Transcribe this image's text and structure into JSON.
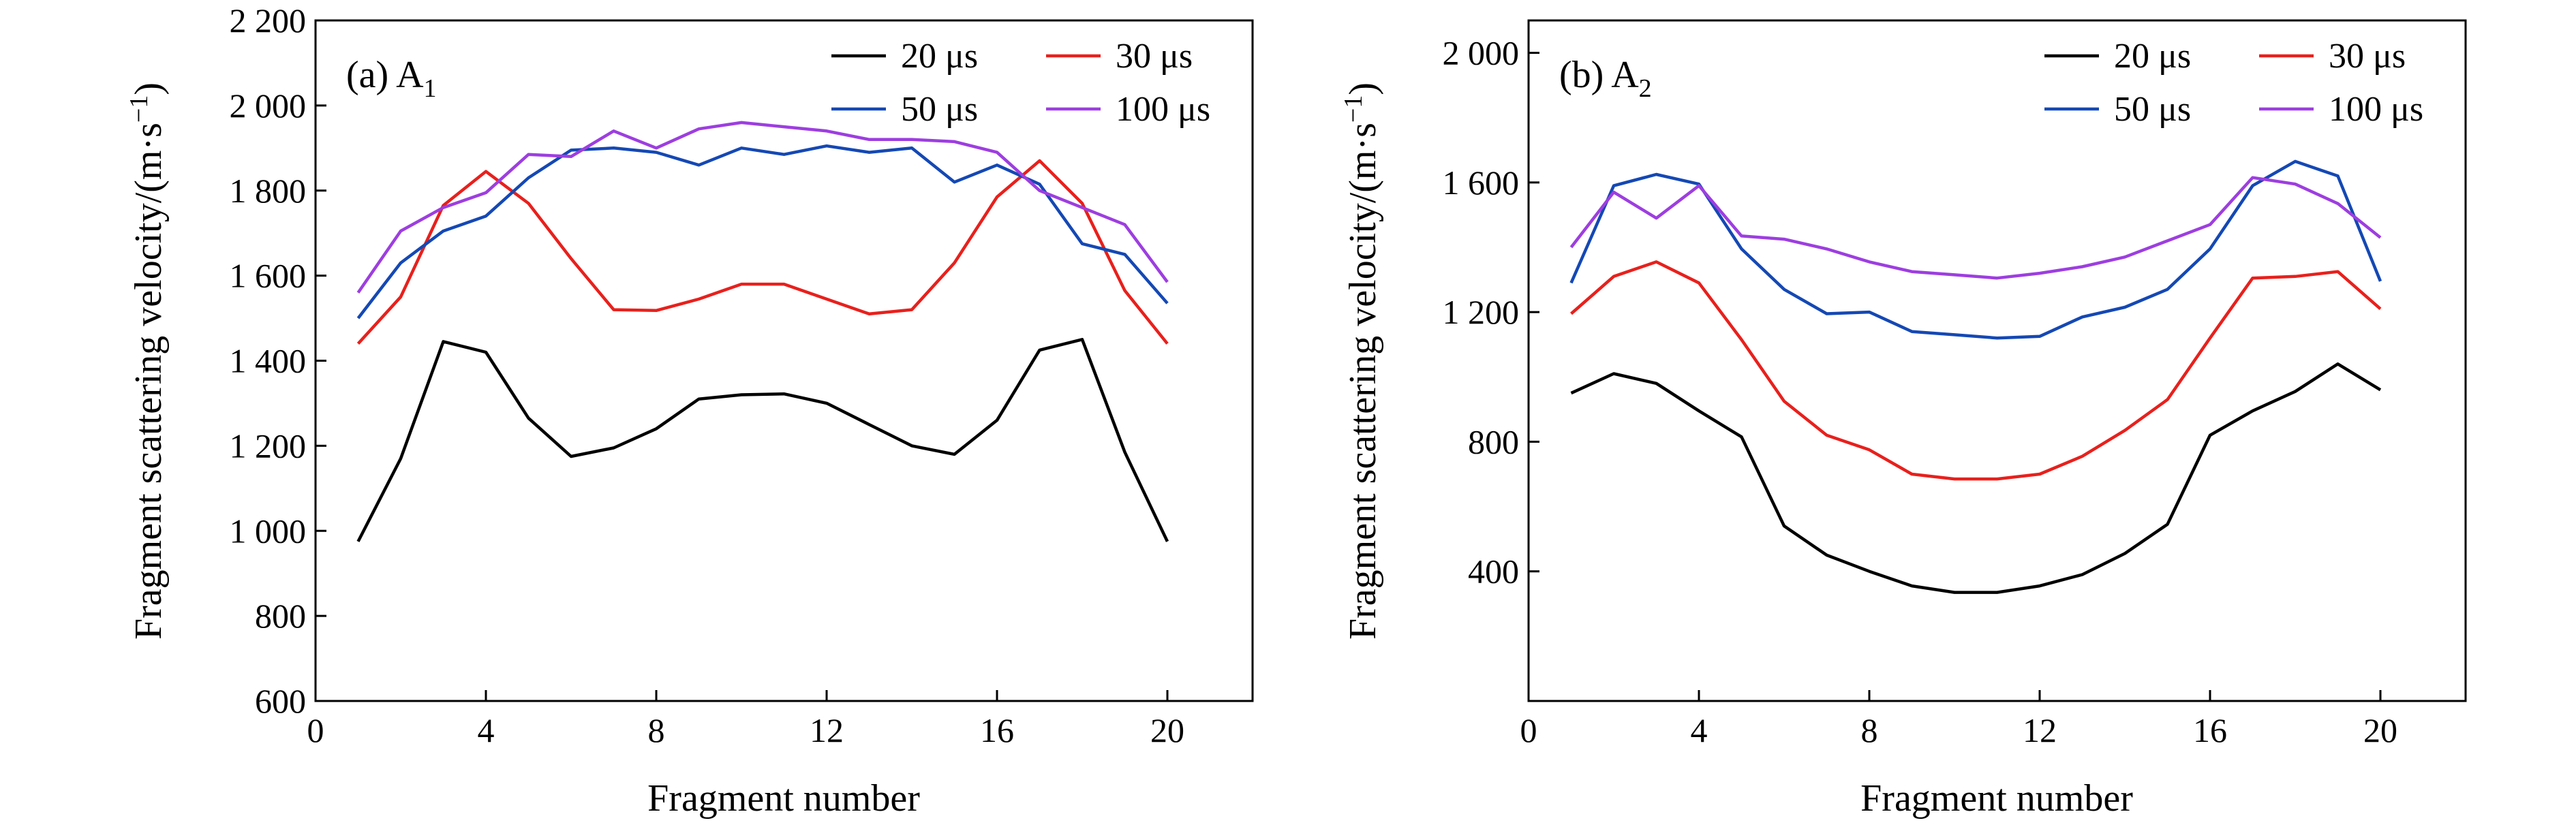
{
  "chart_data": [
    {
      "type": "line",
      "panel_label": "(a) A",
      "panel_subscript": "1",
      "xlabel": "Fragment number",
      "ylabel": "Fragment scattering velocity/(m·s",
      "ylabel_sup": "−1",
      "ylabel_end": ")",
      "xlim": [
        0,
        22
      ],
      "ylim": [
        600,
        2200
      ],
      "x_ticks": [
        0,
        4,
        8,
        12,
        16,
        20
      ],
      "x_tick_labels": [
        "0",
        "4",
        "8",
        "12",
        "16",
        "20"
      ],
      "y_ticks": [
        600,
        800,
        1000,
        1200,
        1400,
        1600,
        1800,
        2000,
        2200
      ],
      "y_tick_labels": [
        "600",
        "800",
        "1 000",
        "1 200",
        "1 400",
        "1 600",
        "1 800",
        "2 000",
        "2 200"
      ],
      "legend_position": "top-right",
      "x": [
        1,
        2,
        3,
        4,
        5,
        6,
        7,
        8,
        9,
        10,
        11,
        12,
        13,
        14,
        15,
        16,
        17,
        18,
        19,
        20
      ],
      "series": [
        {
          "name": "20 μs",
          "color": "#000000",
          "values": [
            975,
            1170,
            1445,
            1420,
            1265,
            1175,
            1195,
            1240,
            1310,
            1320,
            1322,
            1300,
            1250,
            1200,
            1180,
            1260,
            1425,
            1450,
            1185,
            975
          ]
        },
        {
          "name": "30 μs",
          "color": "#e8201c",
          "values": [
            1440,
            1550,
            1765,
            1845,
            1770,
            1640,
            1520,
            1518,
            1545,
            1580,
            1580,
            1545,
            1510,
            1520,
            1630,
            1785,
            1870,
            1770,
            1565,
            1440
          ]
        },
        {
          "name": "50 μs",
          "color": "#1448b4",
          "values": [
            1500,
            1630,
            1705,
            1740,
            1830,
            1895,
            1900,
            1890,
            1860,
            1900,
            1885,
            1905,
            1890,
            1900,
            1820,
            1860,
            1815,
            1675,
            1650,
            1535
          ]
        },
        {
          "name": "100 μs",
          "color": "#9d3ee0",
          "values": [
            1560,
            1705,
            1760,
            1795,
            1885,
            1880,
            1940,
            1900,
            1945,
            1960,
            1950,
            1940,
            1920,
            1920,
            1915,
            1890,
            1800,
            1760,
            1720,
            1585
          ]
        }
      ]
    },
    {
      "type": "line",
      "panel_label": "(b) A",
      "panel_subscript": "2",
      "xlabel": "Fragment number",
      "ylabel": "Fragment scattering velocity/(m·s",
      "ylabel_sup": "−1",
      "ylabel_end": ")",
      "xlim": [
        0,
        22
      ],
      "ylim": [
        0,
        2100
      ],
      "x_ticks": [
        0,
        4,
        8,
        12,
        16,
        20
      ],
      "x_tick_labels": [
        "0",
        "4",
        "8",
        "12",
        "16",
        "20"
      ],
      "y_ticks": [
        400,
        800,
        1200,
        1600,
        2000
      ],
      "y_tick_labels": [
        "400",
        "800",
        "1 200",
        "1 600",
        "2 000"
      ],
      "legend_position": "top-right",
      "x": [
        1,
        2,
        3,
        4,
        5,
        6,
        7,
        8,
        9,
        10,
        11,
        12,
        13,
        14,
        15,
        16,
        17,
        18,
        19,
        20
      ],
      "series": [
        {
          "name": "20 μs",
          "color": "#000000",
          "values": [
            950,
            1010,
            980,
            895,
            815,
            540,
            450,
            400,
            355,
            335,
            335,
            355,
            390,
            455,
            545,
            820,
            895,
            955,
            1040,
            960
          ]
        },
        {
          "name": "30 μs",
          "color": "#e8201c",
          "values": [
            1195,
            1310,
            1355,
            1290,
            1115,
            925,
            820,
            775,
            700,
            685,
            685,
            700,
            755,
            835,
            930,
            1120,
            1305,
            1310,
            1325,
            1210
          ]
        },
        {
          "name": "50 μs",
          "color": "#1448b4",
          "values": [
            1290,
            1590,
            1625,
            1595,
            1395,
            1270,
            1195,
            1200,
            1140,
            1130,
            1120,
            1125,
            1185,
            1215,
            1270,
            1395,
            1590,
            1665,
            1620,
            1295
          ]
        },
        {
          "name": "100 μs",
          "color": "#9d3ee0",
          "values": [
            1400,
            1570,
            1490,
            1590,
            1435,
            1425,
            1395,
            1355,
            1325,
            1315,
            1305,
            1320,
            1340,
            1370,
            1420,
            1470,
            1615,
            1595,
            1535,
            1430
          ]
        }
      ]
    }
  ]
}
